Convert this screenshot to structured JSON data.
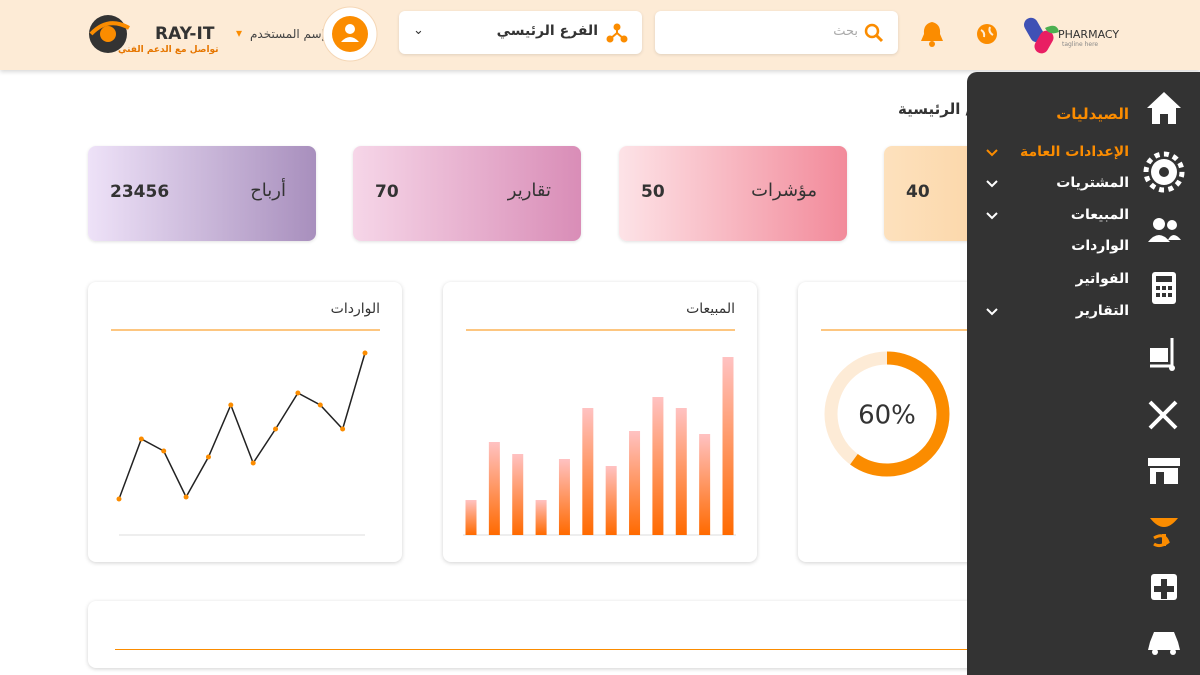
{
  "header": {
    "brand": "RAY-IT",
    "support": "تواصل مع الدعم الفني",
    "user": "إسم المستخدم",
    "branch": "الفرع الرئيسي",
    "search_placeholder": "بحث",
    "pharmacy": "PHARMACY",
    "tagline": "tagline here"
  },
  "breadcrumb": "/ الرئيسية",
  "cards": [
    {
      "label": "أرباح",
      "value": 23456,
      "colors": [
        "#eee2f8",
        "#a88fbd"
      ]
    },
    {
      "label": "تقارير",
      "value": 70,
      "colors": [
        "#f6d6e8",
        "#d98db7"
      ]
    },
    {
      "label": "مؤشرات",
      "value": 50,
      "colors": [
        "#fde3e7",
        "#f28a9a"
      ]
    },
    {
      "value": 40,
      "colors": [
        "#fde1bd",
        "#fbc98e"
      ]
    }
  ],
  "charts": [
    {
      "type": "line",
      "title": "الواردات",
      "color": "#222222",
      "point_color": "#fb8c00",
      "ylim": [
        0,
        100
      ],
      "values": [
        18,
        48,
        42,
        19,
        39,
        65,
        36,
        53,
        71,
        65,
        53,
        91
      ]
    },
    {
      "type": "bar",
      "title": "المبيعات",
      "colors": [
        "#ff6a00",
        "#ffc2c2"
      ],
      "ylim": [
        0,
        200
      ],
      "values": [
        35,
        93,
        81,
        35,
        76,
        127,
        69,
        104,
        138,
        127,
        101,
        178
      ]
    },
    {
      "type": "donut",
      "value": 60,
      "value_label": "60%",
      "color": "#fb8c00",
      "track_color": "#fdebd6"
    }
  ],
  "sidebar": {
    "title": "الصيدليات",
    "items": [
      {
        "label": "الإعدادات العامة",
        "expandable": true,
        "active": true
      },
      {
        "label": "المشتريات",
        "expandable": true
      },
      {
        "label": "المبيعات",
        "expandable": true
      },
      {
        "label": "الواردات",
        "expandable": false
      },
      {
        "label": "الفواتير",
        "expandable": false
      },
      {
        "label": "التقارير",
        "expandable": true
      }
    ]
  }
}
